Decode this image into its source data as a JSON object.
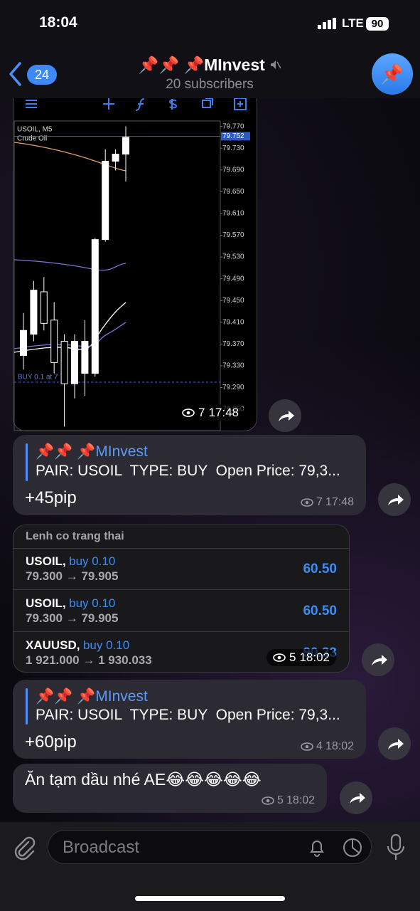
{
  "status_bar": {
    "time": "18:04",
    "network": "LTE",
    "battery": "90"
  },
  "header": {
    "back_count": "24",
    "title": "📌📌 📌MInvest",
    "subtitle": "20 subscribers"
  },
  "messages": [
    {
      "chart": {
        "type": "candlestick",
        "title": "USOIL, M5",
        "subtitle": "Crude Oil",
        "ylim": [
          79.22,
          79.78
        ],
        "yticks": [
          {
            "value": 79.77,
            "label": "79.770"
          },
          {
            "value": 79.73,
            "label": "79.730"
          },
          {
            "value": 79.69,
            "label": "79.690"
          },
          {
            "value": 79.65,
            "label": "79.650"
          },
          {
            "value": 79.61,
            "label": "79.610"
          },
          {
            "value": 79.57,
            "label": "79.570"
          },
          {
            "value": 79.53,
            "label": "79.530"
          },
          {
            "value": 79.49,
            "label": "79.490"
          },
          {
            "value": 79.45,
            "label": "79.450"
          },
          {
            "value": 79.41,
            "label": "79.410"
          },
          {
            "value": 79.37,
            "label": "79.370"
          },
          {
            "value": 79.33,
            "label": "79.330"
          },
          {
            "value": 79.29,
            "label": "79.290"
          },
          {
            "value": 79.25,
            "label": "79.250"
          }
        ],
        "current_price": 79.752,
        "annotation": "BUY 0.1 at 7",
        "candles": [
          {
            "open": 79.349,
            "high": 79.427,
            "low": 79.323,
            "close": 79.395
          },
          {
            "open": 79.388,
            "high": 79.486,
            "low": 79.375,
            "close": 79.469
          },
          {
            "open": 79.466,
            "high": 79.493,
            "low": 79.395,
            "close": 79.408
          },
          {
            "open": 79.414,
            "high": 79.447,
            "low": 79.316,
            "close": 79.336
          },
          {
            "open": 79.375,
            "high": 79.388,
            "low": 79.218,
            "close": 79.297
          },
          {
            "open": 79.297,
            "high": 79.388,
            "low": 79.27,
            "close": 79.375
          },
          {
            "open": 79.316,
            "high": 79.414,
            "low": 79.275,
            "close": 79.375
          },
          {
            "open": 79.316,
            "high": 79.565,
            "low": 79.31,
            "close": 79.562
          },
          {
            "open": 79.562,
            "high": 79.728,
            "low": 79.558,
            "close": 79.706
          },
          {
            "open": 79.706,
            "high": 79.728,
            "low": 79.689,
            "close": 79.719
          },
          {
            "open": 79.719,
            "high": 79.77,
            "low": 79.669,
            "close": 79.75
          }
        ]
      },
      "views": 7,
      "time": "17:48"
    },
    {
      "channel": "📌📌 📌MInvest",
      "text": "PAIR: USOIL  TYPE: BUY  Open Price: 79,3...",
      "result": "+45pip",
      "views": 7,
      "time": "17:48"
    },
    {
      "table": {
        "title": "Lenh co trang thai",
        "rows": [
          {
            "symbol": "USOIL,",
            "side": "buy 0.10",
            "prices": "79.300 → 79.905",
            "profit": "60.50"
          },
          {
            "symbol": "USOIL,",
            "side": "buy 0.10",
            "prices": "79.300 → 79.905",
            "profit": "60.50"
          },
          {
            "symbol": "XAUUSD,",
            "side": "buy 0.10",
            "prices": "1 921.000 → 1 930.033",
            "profit": "90.33"
          }
        ]
      },
      "views": 5,
      "time": "18:02"
    },
    {
      "channel": "📌📌 📌MInvest",
      "text": "PAIR: USOIL  TYPE: BUY  Open Price: 79,3...",
      "result": "+60pip",
      "views": 4,
      "time": "18:02"
    },
    {
      "text": "Ăn tạm dầu nhé AE😂😂😂😂😂",
      "views": 5,
      "time": "18:02"
    }
  ],
  "input": {
    "placeholder": "Broadcast"
  }
}
